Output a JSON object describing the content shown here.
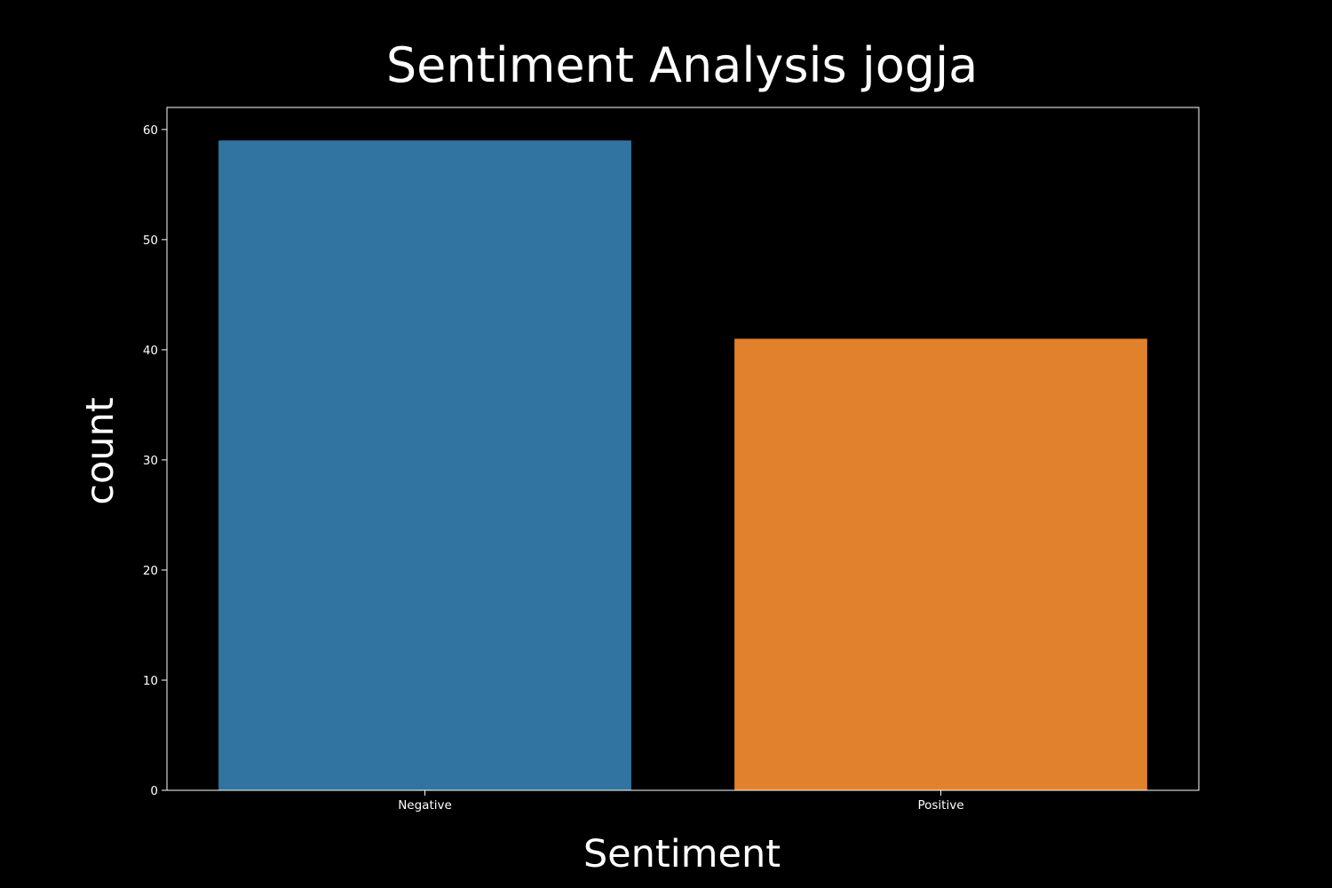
{
  "chart_data": {
    "type": "bar",
    "title": "Sentiment Analysis jogja",
    "xlabel": "Sentiment",
    "ylabel": "count",
    "categories": [
      "Negative",
      "Positive"
    ],
    "values": [
      59,
      41
    ],
    "colors": [
      "#3274a1",
      "#e1812c"
    ],
    "ylim": [
      0,
      62
    ],
    "yticks": [
      0,
      10,
      20,
      30,
      40,
      50,
      60
    ],
    "grid": false,
    "background": "#000000",
    "foreground": "#ffffff"
  }
}
